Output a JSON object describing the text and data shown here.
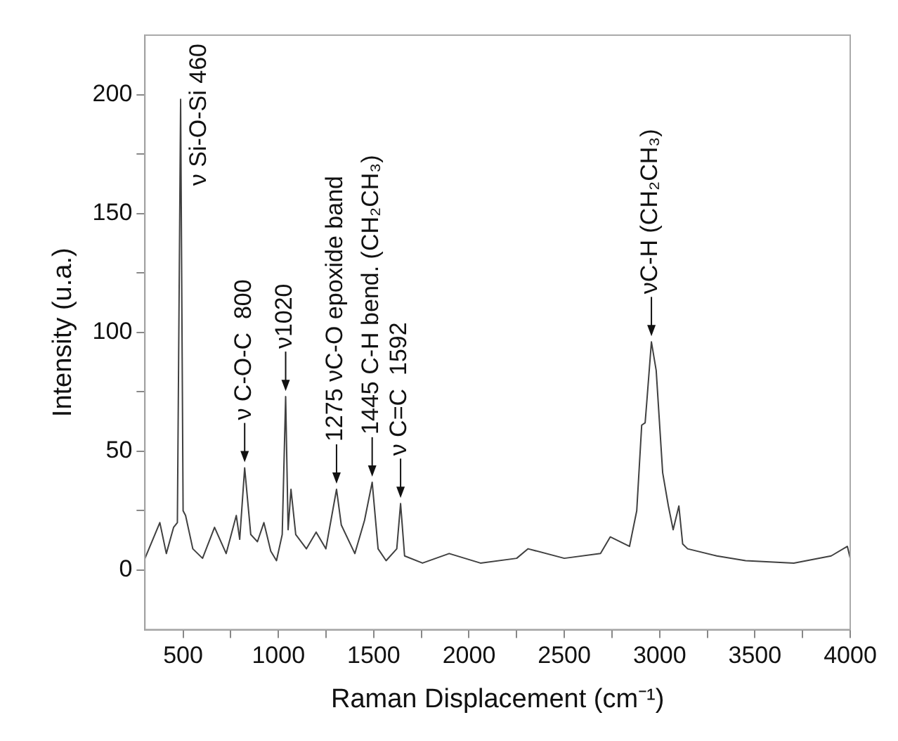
{
  "chart_data": {
    "type": "line",
    "xlabel": "Raman Displacement (cm⁻¹)",
    "ylabel": "Intensity (u.a.)",
    "xlim": [
      300,
      4000
    ],
    "ylim": [
      -25,
      225
    ],
    "xticks": [
      500,
      {
        "value": 750,
        "label": null
      },
      1000,
      {
        "value": 1250,
        "label": null
      },
      1500,
      {
        "value": 1750,
        "label": null
      },
      2000,
      {
        "value": 2250,
        "label": null
      },
      2500,
      {
        "value": 2750,
        "label": null
      },
      3000,
      {
        "value": 3250,
        "label": null
      },
      3500,
      {
        "value": 3750,
        "label": null
      },
      4000
    ],
    "yticks": [
      0,
      {
        "value": 25,
        "label": null
      },
      50,
      {
        "value": 75,
        "label": null
      },
      100,
      {
        "value": 125,
        "label": null
      },
      150,
      {
        "value": 175,
        "label": null
      },
      200
    ],
    "grid": false,
    "legend": false,
    "marker": "none",
    "line_style": "solid",
    "series": [
      {
        "color": "#404040",
        "x": [
          300,
          378,
          412,
          450,
          470,
          487,
          500,
          513,
          551,
          602,
          665,
          726,
          779,
          797,
          823,
          855,
          890,
          924,
          960,
          990,
          1020,
          1038,
          1051,
          1066,
          1091,
          1147,
          1198,
          1249,
          1305,
          1330,
          1401,
          1452,
          1492,
          1523,
          1565,
          1621,
          1641,
          1662,
          1756,
          1896,
          2060,
          2250,
          2310,
          2500,
          2690,
          2741,
          2842,
          2880,
          2906,
          2924,
          2932,
          2957,
          2982,
          3016,
          3046,
          3071,
          3101,
          3121,
          3147,
          3300,
          3451,
          3704,
          3900,
          3985,
          4000
        ],
        "values": [
          5,
          20,
          7,
          18,
          20,
          198,
          25,
          23,
          9,
          5,
          18,
          7,
          23,
          13,
          43,
          15,
          12,
          20,
          8,
          4,
          15,
          73,
          17,
          34,
          15,
          9,
          16,
          9,
          34,
          19,
          7,
          21,
          37,
          9,
          4,
          9,
          28,
          6,
          3,
          7,
          3,
          5,
          9,
          5,
          7,
          14,
          10,
          25,
          61,
          62,
          70,
          96,
          84,
          41,
          27,
          17,
          27,
          11,
          9,
          6,
          4,
          3,
          6,
          10,
          5
        ]
      }
    ],
    "annotations": [
      {
        "text": "ν Si-O-Si 460",
        "x": 487,
        "y": 198
      },
      {
        "text": "ν C-O-C  800",
        "x": 823,
        "y": 43
      },
      {
        "text": "ν1020",
        "x": 1038,
        "y": 73
      },
      {
        "text": "1275 νC-O epoxide band",
        "x": 1305,
        "y": 34
      },
      {
        "text": "1445 C-H bend. (CH₂CH₃)",
        "x": 1492,
        "y": 37
      },
      {
        "text": "ν C=C  1592",
        "x": 1641,
        "y": 28
      },
      {
        "text": "νC-H (CH₂CH₃)",
        "x": 2957,
        "y": 96
      }
    ]
  }
}
